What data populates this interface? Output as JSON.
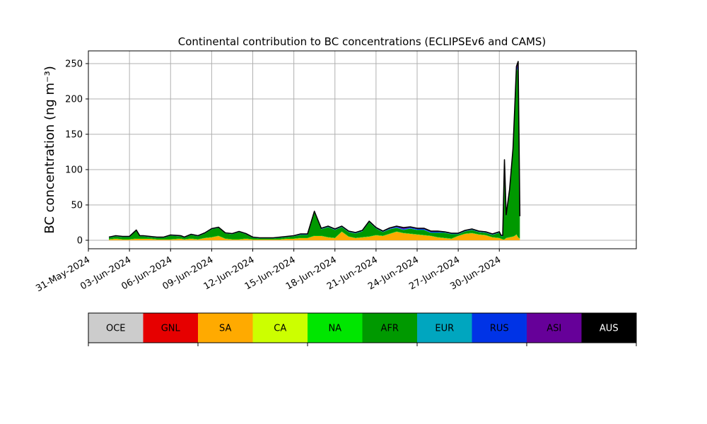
{
  "chart_data": {
    "type": "area",
    "title": "Continental contribution to BC concentrations (ECLIPSEv6 and CAMS)",
    "ylabel": "BC concentration (ng m⁻³)",
    "xlabel": "",
    "ylim": [
      -12,
      268
    ],
    "yticks": [
      0,
      50,
      100,
      150,
      200,
      250
    ],
    "xlim": [
      "2024-05-31T00:00",
      "2024-07-10T00:00"
    ],
    "xticks": [
      "31-May-2024",
      "03-Jun-2024",
      "06-Jun-2024",
      "09-Jun-2024",
      "12-Jun-2024",
      "15-Jun-2024",
      "18-Jun-2024",
      "21-Jun-2024",
      "24-Jun-2024",
      "27-Jun-2024",
      "30-Jun-2024"
    ],
    "grid": true,
    "legend": [
      {
        "name": "OCE",
        "color": "#cccccc"
      },
      {
        "name": "GNL",
        "color": "#e60000"
      },
      {
        "name": "SA",
        "color": "#ffaa00"
      },
      {
        "name": "CA",
        "color": "#ccff00"
      },
      {
        "name": "NA",
        "color": "#00e600"
      },
      {
        "name": "AFR",
        "color": "#009900"
      },
      {
        "name": "EUR",
        "color": "#00a6bf"
      },
      {
        "name": "RUS",
        "color": "#0033e6"
      },
      {
        "name": "ASI",
        "color": "#660099"
      },
      {
        "name": "AUS",
        "color": "#000000"
      }
    ],
    "legend_placement": "below",
    "x": [
      "2024-06-01T12:00",
      "2024-06-02T00:00",
      "2024-06-02T12:00",
      "2024-06-03T00:00",
      "2024-06-03T12:00",
      "2024-06-03T18:00",
      "2024-06-04T00:00",
      "2024-06-04T12:00",
      "2024-06-05T00:00",
      "2024-06-05T12:00",
      "2024-06-06T00:00",
      "2024-06-06T18:00",
      "2024-06-07T00:00",
      "2024-06-07T12:00",
      "2024-06-08T00:00",
      "2024-06-08T12:00",
      "2024-06-09T00:00",
      "2024-06-09T12:00",
      "2024-06-10T00:00",
      "2024-06-10T12:00",
      "2024-06-11T00:00",
      "2024-06-11T12:00",
      "2024-06-12T00:00",
      "2024-06-12T12:00",
      "2024-06-13T00:00",
      "2024-06-13T12:00",
      "2024-06-14T00:00",
      "2024-06-14T12:00",
      "2024-06-15T00:00",
      "2024-06-15T12:00",
      "2024-06-16T00:00",
      "2024-06-16T12:00",
      "2024-06-17T00:00",
      "2024-06-17T12:00",
      "2024-06-18T00:00",
      "2024-06-18T12:00",
      "2024-06-19T00:00",
      "2024-06-19T12:00",
      "2024-06-20T00:00",
      "2024-06-20T12:00",
      "2024-06-21T00:00",
      "2024-06-21T12:00",
      "2024-06-22T00:00",
      "2024-06-22T12:00",
      "2024-06-23T00:00",
      "2024-06-23T12:00",
      "2024-06-24T00:00",
      "2024-06-24T12:00",
      "2024-06-25T00:00",
      "2024-06-25T12:00",
      "2024-06-26T00:00",
      "2024-06-26T12:00",
      "2024-06-27T00:00",
      "2024-06-27T12:00",
      "2024-06-28T00:00",
      "2024-06-28T12:00",
      "2024-06-29T00:00",
      "2024-06-29T12:00",
      "2024-06-30T00:00",
      "2024-06-30T03:00",
      "2024-06-30T06:00",
      "2024-06-30T09:00",
      "2024-06-30T12:00",
      "2024-06-30T18:00",
      "2024-07-01T00:00",
      "2024-07-01T03:00",
      "2024-07-01T06:00",
      "2024-07-01T09:00",
      "2024-07-01T12:00"
    ],
    "series": [
      {
        "name": "SA",
        "color": "#ffaa00",
        "values": [
          1,
          2,
          1,
          1,
          2,
          2,
          2,
          2,
          1,
          1,
          1,
          2,
          1,
          2,
          1,
          3,
          4,
          6,
          2,
          1,
          1,
          2,
          1,
          1,
          1,
          1,
          1,
          2,
          2,
          3,
          3,
          6,
          6,
          4,
          3,
          12,
          5,
          3,
          4,
          5,
          7,
          6,
          9,
          12,
          10,
          9,
          8,
          7,
          6,
          4,
          3,
          2,
          6,
          9,
          10,
          8,
          7,
          4,
          3,
          2,
          1,
          1,
          3,
          4,
          5,
          6,
          8,
          4,
          2
        ]
      },
      {
        "name": "NA",
        "color": "#00e600",
        "values": [
          0.5,
          0.5,
          0.5,
          0.5,
          0.5,
          0.5,
          0.5,
          0.5,
          0.5,
          0.5,
          0.5,
          0.5,
          0.5,
          0.5,
          0.5,
          0.5,
          0.5,
          0.5,
          0.5,
          0.5,
          0.5,
          0.5,
          0.5,
          0.5,
          0.5,
          0.5,
          0.5,
          0.5,
          0.5,
          0.5,
          0.5,
          0.5,
          0.5,
          0.5,
          0.5,
          0.5,
          0.5,
          0.5,
          0.5,
          0.5,
          0.5,
          0.5,
          0.5,
          0.5,
          0.5,
          0.5,
          0.5,
          0.5,
          0.5,
          0.5,
          0.5,
          0.5,
          0.5,
          0.5,
          0.5,
          0.5,
          0.5,
          0.5,
          0.5,
          0.5,
          0.5,
          0.5,
          0.5,
          0.5,
          0.5,
          0.5,
          0.5,
          0.5,
          0.5
        ]
      },
      {
        "name": "AFR",
        "color": "#009900",
        "values": [
          2,
          3,
          3,
          3,
          11,
          3,
          3,
          2,
          2,
          2,
          5,
          3,
          2,
          5,
          4,
          6,
          11,
          11,
          7,
          7,
          10,
          6,
          2,
          1,
          1,
          1,
          2,
          2,
          3,
          4,
          4,
          33,
          9,
          14,
          11,
          6,
          6,
          6,
          8,
          20,
          9,
          5,
          6,
          5,
          4,
          7,
          6,
          7,
          4,
          6,
          7,
          6,
          2,
          3,
          4,
          3,
          3,
          3,
          7,
          3,
          4,
          110,
          30,
          65,
          120,
          175,
          230,
          240,
          28
        ]
      },
      {
        "name": "EUR",
        "color": "#00a6bf",
        "values": [
          0.5,
          0.5,
          0.5,
          0.5,
          0.5,
          0.5,
          0.5,
          0.5,
          0.5,
          0.5,
          0.5,
          0.5,
          0.5,
          0.5,
          0.5,
          0.5,
          0.5,
          0.5,
          0.5,
          0.5,
          0.5,
          0.5,
          0.5,
          0.5,
          0.5,
          0.5,
          0.5,
          0.5,
          0.5,
          0.5,
          0.5,
          0.5,
          0.5,
          0.5,
          0.5,
          0.5,
          0.5,
          0.5,
          0.5,
          0.5,
          0.5,
          0.5,
          0.5,
          0.5,
          0.5,
          0.5,
          0.5,
          0.5,
          0.5,
          0.5,
          0.5,
          0.5,
          0.5,
          0.5,
          0.5,
          0.5,
          0.5,
          0.5,
          0.5,
          0.5,
          0.5,
          0.5,
          0.5,
          0.5,
          0.5,
          0.5,
          0.5,
          0.5,
          0.5
        ]
      },
      {
        "name": "RUS",
        "color": "#0033e6",
        "values": [
          0.3,
          0.3,
          0.3,
          0.3,
          0.3,
          0.3,
          0.3,
          0.3,
          0.3,
          0.3,
          0.3,
          0.3,
          0.3,
          0.3,
          0.3,
          0.3,
          0.3,
          0.3,
          0.3,
          0.3,
          0.3,
          0.3,
          0.3,
          0.3,
          0.3,
          0.3,
          0.3,
          0.3,
          0.3,
          0.5,
          0.5,
          0.5,
          0.5,
          0.5,
          0.5,
          0.5,
          0.5,
          0.5,
          0.5,
          0.5,
          0.5,
          0.5,
          0.5,
          1,
          1,
          1,
          1,
          1,
          1,
          1,
          0.5,
          0.5,
          0.5,
          0.5,
          0.5,
          0.5,
          0.5,
          0.5,
          0.5,
          0.5,
          0.5,
          1,
          1,
          1,
          2,
          2,
          3,
          3,
          1
        ]
      },
      {
        "name": "ASI",
        "color": "#660099",
        "values": [
          0.2,
          0.2,
          0.2,
          0.2,
          0.2,
          0.2,
          0.2,
          0.2,
          0.2,
          0.2,
          0.2,
          0.2,
          0.2,
          0.2,
          0.2,
          0.2,
          0.2,
          0.2,
          0.2,
          0.2,
          0.2,
          0.2,
          0.2,
          0.2,
          0.2,
          0.2,
          0.2,
          0.2,
          0.2,
          0.5,
          0.5,
          0.5,
          0.5,
          0.5,
          0.5,
          0.5,
          0.5,
          0.5,
          0.5,
          0.5,
          0.5,
          0.5,
          1,
          1,
          2,
          1,
          1,
          1,
          1,
          1,
          0.5,
          0.5,
          0.5,
          0.5,
          0.5,
          0.5,
          0.5,
          0.5,
          0.5,
          0.5,
          0.5,
          1,
          1,
          1,
          2,
          3,
          4,
          5,
          2
        ]
      }
    ]
  }
}
